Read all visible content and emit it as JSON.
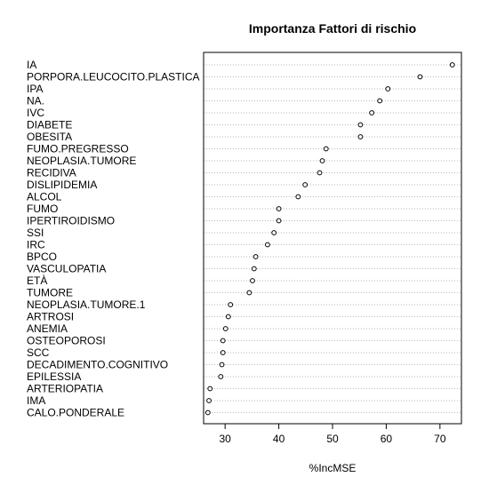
{
  "chart_data": {
    "type": "dotchart",
    "title": "Importanza Fattori di rischio",
    "xlabel": "%IncMSE",
    "ylabel": "",
    "xlim": [
      26,
      74
    ],
    "xticks": [
      30,
      40,
      50,
      60,
      70
    ],
    "grid": "dotted horizontal lines per variable",
    "categories": [
      "IA",
      "PORPORA.LEUCOCITO.PLASTICA",
      "IPA",
      "NA.",
      "IVC",
      "DIABETE",
      "OBESITA",
      "FUMO.PREGRESSO",
      "NEOPLASIA.TUMORE",
      "RECIDIVA",
      "DISLIPIDEMIA",
      "ALCOL",
      "FUMO",
      "IPERTIROIDISMO",
      "SSI",
      "IRC",
      "BPCO",
      "VASCULOPATIA",
      "ETÀ",
      "TUMORE",
      "NEOPLASIA.TUMORE.1",
      "ARTROSI",
      "ANEMIA",
      "OSTEOPOROSI",
      "SCC",
      "DECADIMENTO.COGNITIVO",
      "EPILESSIA",
      "ARTERIOPATIA",
      "IMA",
      "CALO.PONDERALE"
    ],
    "values": [
      72.3,
      66.3,
      60.3,
      58.8,
      57.3,
      55.2,
      55.2,
      48.8,
      48.1,
      47.6,
      44.9,
      43.6,
      40.0,
      40.0,
      39.1,
      37.9,
      35.7,
      35.4,
      35.1,
      34.5,
      31.0,
      30.6,
      30.1,
      29.6,
      29.6,
      29.4,
      29.2,
      27.2,
      27.0,
      26.8
    ]
  }
}
